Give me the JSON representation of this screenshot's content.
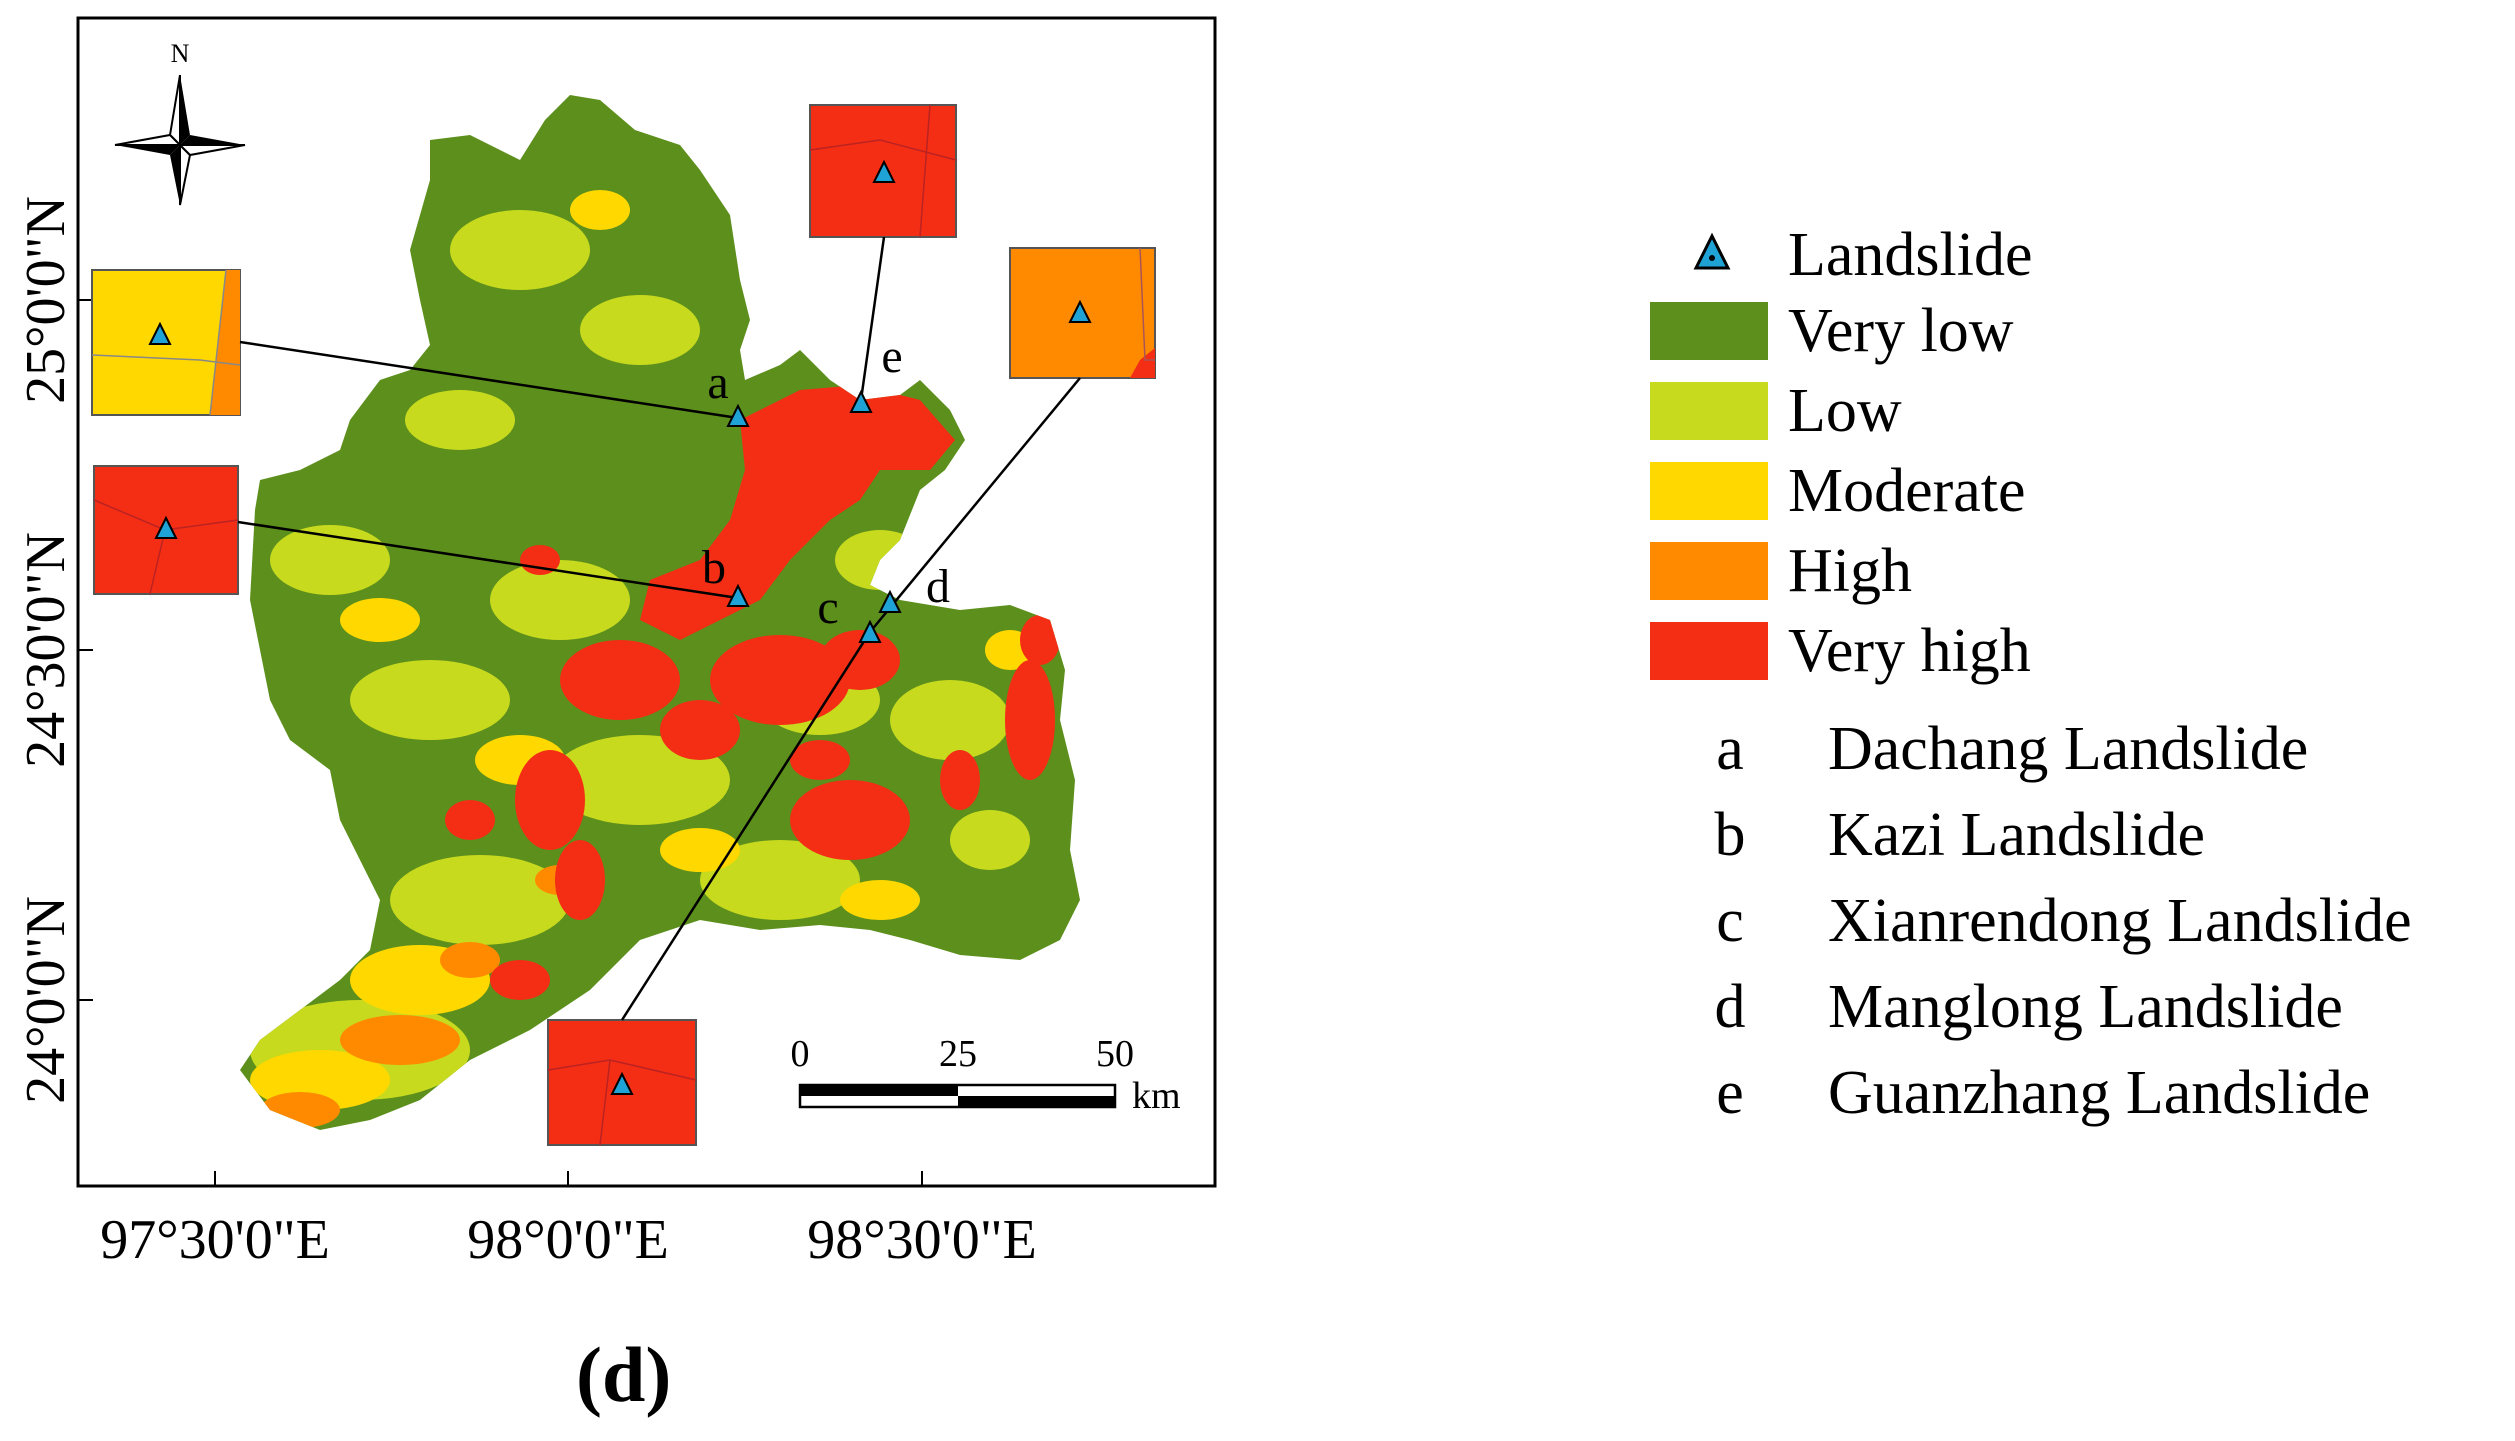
{
  "north_label": "N",
  "lat_labels": [
    "25°0'0\"N",
    "24°30'0\"N",
    "24°0'0\"N"
  ],
  "lon_labels": [
    "97°30'0\"E",
    "98°0'0\"E",
    "98°30'0\"E"
  ],
  "site_letters": [
    "a",
    "b",
    "c",
    "d",
    "e"
  ],
  "scale": {
    "ticks": [
      "0",
      "25",
      "50"
    ],
    "unit": "km"
  },
  "panel_label": "(d)",
  "legend": {
    "landslide": "Landslide",
    "classes": [
      {
        "label": "Very low",
        "color": "#5c8f1c"
      },
      {
        "label": "Low",
        "color": "#c8da1e"
      },
      {
        "label": "Moderate",
        "color": "#ffd800"
      },
      {
        "label": "High",
        "color": "#ff8a00"
      },
      {
        "label": "Very high",
        "color": "#f42e15"
      }
    ],
    "sites": [
      {
        "letter": "a",
        "name": "Dachang Landslide"
      },
      {
        "letter": "b",
        "name": "Kazi Landslide"
      },
      {
        "letter": "c",
        "name": "Xianrendong Landslide"
      },
      {
        "letter": "d",
        "name": "Manglong Landslide"
      },
      {
        "letter": "e",
        "name": "Guanzhang Landslide"
      }
    ]
  },
  "colors": {
    "marker": "#1fa3d6",
    "frame": "#000000"
  }
}
